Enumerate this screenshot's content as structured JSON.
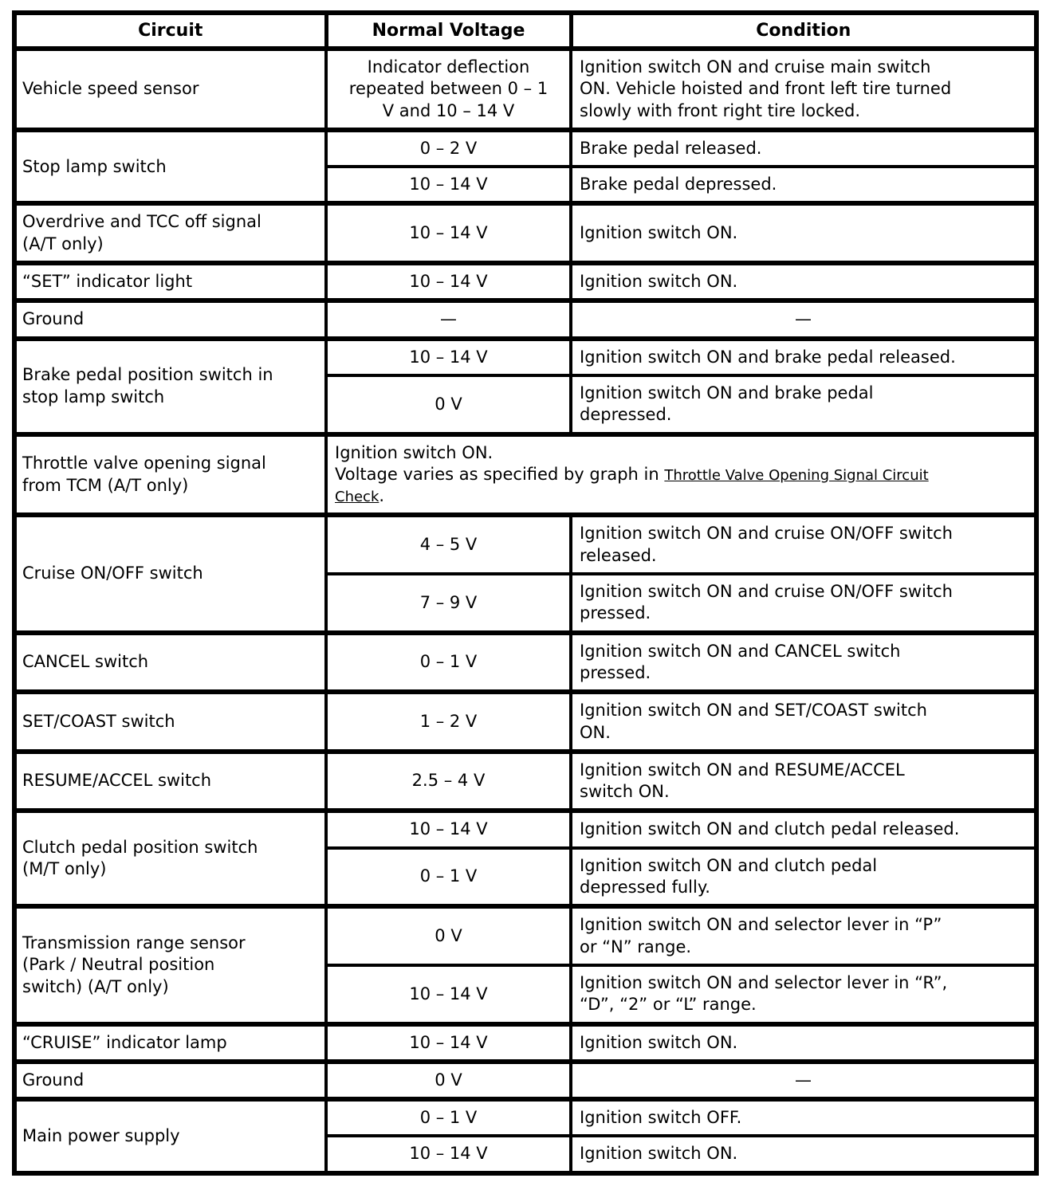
{
  "table": {
    "headers": [
      {
        "label": "Circuit"
      },
      {
        "label": "Normal Voltage"
      },
      {
        "label": "Condition"
      }
    ],
    "link_color": "#000000",
    "border_color": "#000000",
    "rows": [
      {
        "cells": [
          {
            "type": "circuit",
            "text": "Vehicle speed sensor"
          },
          {
            "type": "voltage",
            "text": "Indicator deflection\nrepeated between 0 – 1\nV and 10 – 14 V"
          },
          {
            "type": "condition",
            "text": "Ignition switch ON and cruise main switch\nON. Vehicle hoisted and front left tire turned\nslowly with front right tire locked."
          }
        ]
      },
      {
        "cells": [
          {
            "type": "circuit",
            "text": "Stop lamp switch",
            "rowspan": 2
          },
          {
            "type": "voltage",
            "text": "0 – 2 V"
          },
          {
            "type": "condition",
            "text": "Brake pedal released."
          }
        ]
      },
      {
        "cells": [
          {
            "type": "voltage",
            "text": "10 – 14 V"
          },
          {
            "type": "condition",
            "text": "Brake pedal depressed."
          }
        ]
      },
      {
        "cells": [
          {
            "type": "circuit",
            "text": "Overdrive and TCC off signal\n(A/T only)"
          },
          {
            "type": "voltage",
            "text": "10 – 14 V"
          },
          {
            "type": "condition",
            "text": "Ignition switch ON."
          }
        ]
      },
      {
        "cells": [
          {
            "type": "circuit",
            "text": "“SET” indicator light"
          },
          {
            "type": "voltage",
            "text": "10 – 14 V"
          },
          {
            "type": "condition",
            "text": "Ignition switch ON."
          }
        ]
      },
      {
        "cells": [
          {
            "type": "circuit",
            "text": "Ground"
          },
          {
            "type": "voltage",
            "text": "—"
          },
          {
            "type": "condition",
            "text": "—",
            "center": true
          }
        ]
      },
      {
        "cells": [
          {
            "type": "circuit",
            "text": "Brake pedal position switch in\nstop lamp switch",
            "rowspan": 2
          },
          {
            "type": "voltage",
            "text": "10 – 14 V"
          },
          {
            "type": "condition",
            "text": "Ignition switch ON and brake pedal released."
          }
        ]
      },
      {
        "cells": [
          {
            "type": "voltage",
            "text": "0 V"
          },
          {
            "type": "condition",
            "text": "Ignition switch ON and brake pedal\ndepressed."
          }
        ]
      },
      {
        "cells": [
          {
            "type": "circuit",
            "text": "Throttle valve opening signal\nfrom TCM (A/T only)"
          },
          {
            "type": "wide",
            "colspan": 2,
            "parts": [
              {
                "text": "Ignition switch ON.\nVoltage varies as specified by graph in "
              },
              {
                "text": "Throttle Valve Opening Signal Circuit\nCheck",
                "link": true
              },
              {
                "text": "."
              }
            ]
          }
        ]
      },
      {
        "cells": [
          {
            "type": "circuit",
            "text": "Cruise ON/OFF switch",
            "rowspan": 2
          },
          {
            "type": "voltage",
            "text": "4 – 5 V"
          },
          {
            "type": "condition",
            "text": "Ignition switch ON and cruise ON/OFF switch\nreleased."
          }
        ]
      },
      {
        "cells": [
          {
            "type": "voltage",
            "text": "7 – 9 V"
          },
          {
            "type": "condition",
            "text": "Ignition switch ON and cruise ON/OFF switch\npressed."
          }
        ]
      },
      {
        "cells": [
          {
            "type": "circuit",
            "text": "CANCEL switch"
          },
          {
            "type": "voltage",
            "text": "0 – 1 V"
          },
          {
            "type": "condition",
            "text": "Ignition switch ON and CANCEL switch\npressed."
          }
        ]
      },
      {
        "cells": [
          {
            "type": "circuit",
            "text": "SET/COAST switch"
          },
          {
            "type": "voltage",
            "text": "1 – 2 V"
          },
          {
            "type": "condition",
            "text": "Ignition switch ON and SET/COAST switch\nON."
          }
        ]
      },
      {
        "cells": [
          {
            "type": "circuit",
            "text": "RESUME/ACCEL switch"
          },
          {
            "type": "voltage",
            "text": "2.5 – 4 V"
          },
          {
            "type": "condition",
            "text": "Ignition switch ON and RESUME/ACCEL\nswitch ON."
          }
        ]
      },
      {
        "cells": [
          {
            "type": "circuit",
            "text": "Clutch pedal position switch\n(M/T only)",
            "rowspan": 2
          },
          {
            "type": "voltage",
            "text": "10 – 14 V"
          },
          {
            "type": "condition",
            "text": "Ignition switch ON and clutch pedal released."
          }
        ]
      },
      {
        "cells": [
          {
            "type": "voltage",
            "text": "0 – 1 V"
          },
          {
            "type": "condition",
            "text": "Ignition switch ON and clutch pedal\ndepressed fully."
          }
        ]
      },
      {
        "cells": [
          {
            "type": "circuit",
            "text": "Transmission range sensor\n(Park / Neutral position\nswitch) (A/T only)",
            "rowspan": 2
          },
          {
            "type": "voltage",
            "text": "0 V"
          },
          {
            "type": "condition",
            "text": "Ignition switch ON and selector lever in “P”\nor “N” range."
          }
        ]
      },
      {
        "cells": [
          {
            "type": "voltage",
            "text": "10 – 14 V"
          },
          {
            "type": "condition",
            "text": "Ignition switch ON and selector lever in “R”,\n“D”, “2” or “L” range."
          }
        ]
      },
      {
        "cells": [
          {
            "type": "circuit",
            "text": "“CRUISE” indicator lamp"
          },
          {
            "type": "voltage",
            "text": "10 – 14 V"
          },
          {
            "type": "condition",
            "text": "Ignition switch ON."
          }
        ]
      },
      {
        "cells": [
          {
            "type": "circuit",
            "text": "Ground"
          },
          {
            "type": "voltage",
            "text": "0 V"
          },
          {
            "type": "condition",
            "text": "—",
            "center": true
          }
        ]
      },
      {
        "cells": [
          {
            "type": "circuit",
            "text": "Main power supply",
            "rowspan": 2
          },
          {
            "type": "voltage",
            "text": "0 – 1 V"
          },
          {
            "type": "condition",
            "text": "Ignition switch OFF."
          }
        ]
      },
      {
        "cells": [
          {
            "type": "voltage",
            "text": "10 – 14 V"
          },
          {
            "type": "condition",
            "text": "Ignition switch ON."
          }
        ]
      }
    ]
  }
}
